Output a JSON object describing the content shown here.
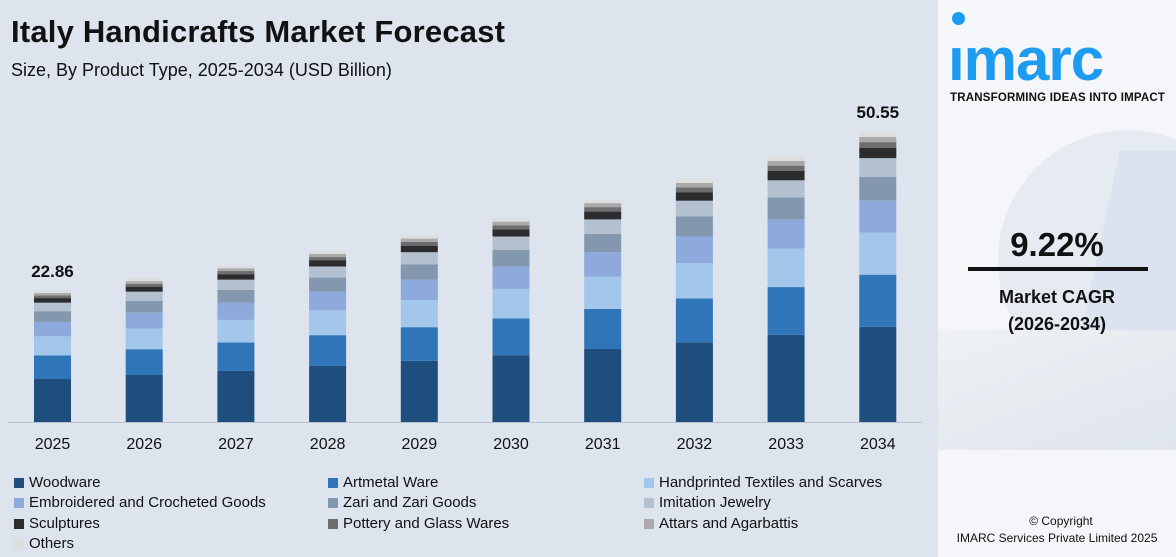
{
  "header": {
    "title": "Italy Handicrafts Market Forecast",
    "subtitle": "Size, By Product Type, 2025-2034 (USD Billion)"
  },
  "sidebar": {
    "logo_text": "ımarc",
    "tagline": "TRANSFORMING IDEAS INTO IMPACT",
    "cagr_value": "9.22%",
    "cagr_label": "Market CAGR",
    "cagr_period": "(2026-2034)",
    "copyright": "© Copyright",
    "copyright_owner": "IMARC Services Private Limited 2025",
    "brand_color": "#1d9bf0"
  },
  "chart_data": {
    "type": "bar",
    "stacked": true,
    "categories": [
      "2025",
      "2026",
      "2027",
      "2028",
      "2029",
      "2030",
      "2031",
      "2032",
      "2033",
      "2034"
    ],
    "totals": [
      22.86,
      24.97,
      27.27,
      29.79,
      32.53,
      35.53,
      38.81,
      42.39,
      46.3,
      50.55
    ],
    "total_labels": [
      {
        "category": "2025",
        "text": "22.86"
      },
      {
        "category": "2034",
        "text": "50.55"
      }
    ],
    "series": [
      {
        "name": "Woodware",
        "color": "#1d4e7e",
        "shares": 0.328
      },
      {
        "name": "Artmetal Ware",
        "color": "#2f75b8",
        "shares": 0.18
      },
      {
        "name": "Handprinted Textiles and Scarves",
        "color": "#a3c7ea",
        "shares": 0.145
      },
      {
        "name": "Embroidered and Crocheted Goods",
        "color": "#8ea9dc",
        "shares": 0.11
      },
      {
        "name": "Zari and Zari Goods",
        "color": "#8397ae",
        "shares": 0.082
      },
      {
        "name": "Imitation Jewelry",
        "color": "#b3c0cf",
        "shares": 0.065
      },
      {
        "name": "Sculptures",
        "color": "#2c2c2e",
        "shares": 0.035
      },
      {
        "name": "Pottery and Glass Wares",
        "color": "#6d6d6d",
        "shares": 0.02
      },
      {
        "name": "Attars and Agarbattis",
        "color": "#a9a9a9",
        "shares": 0.018
      },
      {
        "name": "Others",
        "color": "#dedede",
        "shares": 0.017
      }
    ],
    "ylim": [
      0,
      55
    ],
    "grid": false,
    "legend_position": "bottom"
  }
}
